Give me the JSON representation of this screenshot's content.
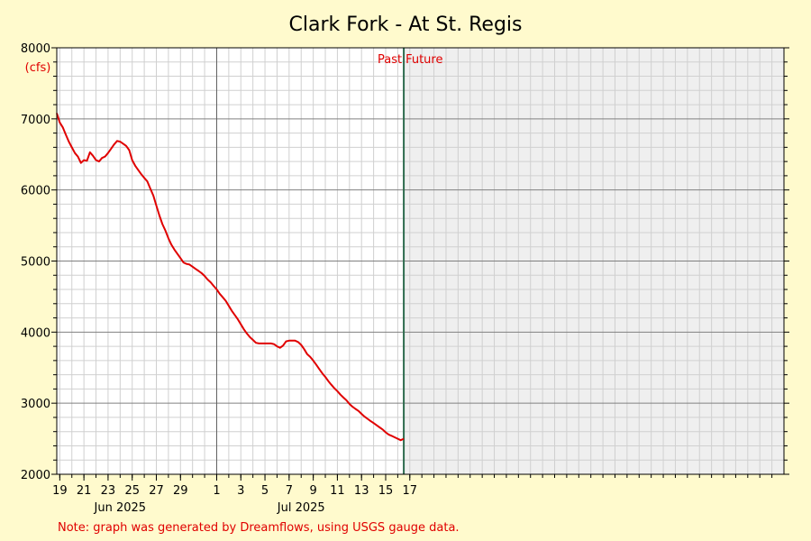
{
  "chart_data": {
    "type": "line",
    "title": "Clark Fork - At St. Regis",
    "ylabel": "(cfs)",
    "ylim": [
      2000,
      8000
    ],
    "y_ticks": [
      "2000",
      "3000",
      "4000",
      "5000",
      "6000",
      "7000",
      "8000"
    ],
    "y_tick_values": [
      2000,
      3000,
      4000,
      5000,
      6000,
      7000,
      8000
    ],
    "x_range": [
      "2025-05-18T18:00",
      "2025-07-18T00:00"
    ],
    "x_tick_labels": [
      "19",
      "21",
      "23",
      "25",
      "27",
      "29",
      "1",
      "3",
      "5",
      "7",
      "9",
      "11",
      "13",
      "15",
      "17"
    ],
    "x_tick_dates": [
      "2025-05-19",
      "2025-05-21",
      "2025-05-23",
      "2025-05-25",
      "2025-05-27",
      "2025-05-29",
      "2025-06-01",
      "2025-06-03",
      "2025-06-05",
      "2025-06-07",
      "2025-06-09",
      "2025-06-11",
      "2025-06-13",
      "2025-06-15",
      "2025-06-17"
    ],
    "month_labels": [
      {
        "text": "Jun 2025",
        "date": "2025-05-24"
      },
      {
        "text": "Jul 2025",
        "date": "2025-06-08"
      }
    ],
    "month_boundary": "2025-06-01",
    "now_date": "2025-06-16T12:00",
    "past_label": "Past",
    "future_label": "Future",
    "grid": true,
    "series": [
      {
        "color": "#e00000",
        "points": [
          [
            "2025-05-18T18:00",
            7080
          ],
          [
            "2025-05-19T00:00",
            6950
          ],
          [
            "2025-05-19T06:00",
            6880
          ],
          [
            "2025-05-19T12:00",
            6780
          ],
          [
            "2025-05-19T18:00",
            6680
          ],
          [
            "2025-05-20T00:00",
            6600
          ],
          [
            "2025-05-20T06:00",
            6520
          ],
          [
            "2025-05-20T12:00",
            6470
          ],
          [
            "2025-05-20T18:00",
            6380
          ],
          [
            "2025-05-21T00:00",
            6420
          ],
          [
            "2025-05-21T06:00",
            6410
          ],
          [
            "2025-05-21T12:00",
            6530
          ],
          [
            "2025-05-21T18:00",
            6480
          ],
          [
            "2025-05-22T00:00",
            6420
          ],
          [
            "2025-05-22T06:00",
            6400
          ],
          [
            "2025-05-22T12:00",
            6450
          ],
          [
            "2025-05-22T18:00",
            6470
          ],
          [
            "2025-05-23T00:00",
            6520
          ],
          [
            "2025-05-23T06:00",
            6580
          ],
          [
            "2025-05-23T12:00",
            6640
          ],
          [
            "2025-05-23T18:00",
            6690
          ],
          [
            "2025-05-24T00:00",
            6680
          ],
          [
            "2025-05-24T06:00",
            6650
          ],
          [
            "2025-05-24T12:00",
            6620
          ],
          [
            "2025-05-24T18:00",
            6560
          ],
          [
            "2025-05-25T00:00",
            6420
          ],
          [
            "2025-05-25T06:00",
            6340
          ],
          [
            "2025-05-25T12:00",
            6280
          ],
          [
            "2025-05-25T18:00",
            6220
          ],
          [
            "2025-05-26T00:00",
            6170
          ],
          [
            "2025-05-26T06:00",
            6120
          ],
          [
            "2025-05-26T12:00",
            6020
          ],
          [
            "2025-05-26T18:00",
            5920
          ],
          [
            "2025-05-27T00:00",
            5780
          ],
          [
            "2025-05-27T06:00",
            5640
          ],
          [
            "2025-05-27T12:00",
            5520
          ],
          [
            "2025-05-27T18:00",
            5430
          ],
          [
            "2025-05-28T00:00",
            5320
          ],
          [
            "2025-05-28T06:00",
            5230
          ],
          [
            "2025-05-28T12:00",
            5160
          ],
          [
            "2025-05-28T18:00",
            5100
          ],
          [
            "2025-05-29T00:00",
            5040
          ],
          [
            "2025-05-29T06:00",
            4980
          ],
          [
            "2025-05-29T12:00",
            4960
          ],
          [
            "2025-05-29T18:00",
            4950
          ],
          [
            "2025-05-30T00:00",
            4920
          ],
          [
            "2025-05-30T06:00",
            4890
          ],
          [
            "2025-05-30T12:00",
            4860
          ],
          [
            "2025-05-30T18:00",
            4830
          ],
          [
            "2025-05-31T00:00",
            4790
          ],
          [
            "2025-05-31T06:00",
            4740
          ],
          [
            "2025-05-31T12:00",
            4700
          ],
          [
            "2025-05-31T18:00",
            4650
          ],
          [
            "2025-06-01T00:00",
            4600
          ],
          [
            "2025-06-01T06:00",
            4540
          ],
          [
            "2025-06-01T12:00",
            4490
          ],
          [
            "2025-06-01T18:00",
            4440
          ],
          [
            "2025-06-02T00:00",
            4370
          ],
          [
            "2025-06-02T06:00",
            4300
          ],
          [
            "2025-06-02T12:00",
            4240
          ],
          [
            "2025-06-02T18:00",
            4180
          ],
          [
            "2025-06-03T00:00",
            4110
          ],
          [
            "2025-06-03T06:00",
            4040
          ],
          [
            "2025-06-03T12:00",
            3980
          ],
          [
            "2025-06-03T18:00",
            3930
          ],
          [
            "2025-06-04T00:00",
            3890
          ],
          [
            "2025-06-04T06:00",
            3850
          ],
          [
            "2025-06-04T12:00",
            3840
          ],
          [
            "2025-06-04T18:00",
            3840
          ],
          [
            "2025-06-05T00:00",
            3840
          ],
          [
            "2025-06-05T06:00",
            3840
          ],
          [
            "2025-06-05T12:00",
            3840
          ],
          [
            "2025-06-05T18:00",
            3830
          ],
          [
            "2025-06-06T00:00",
            3800
          ],
          [
            "2025-06-06T06:00",
            3780
          ],
          [
            "2025-06-06T12:00",
            3810
          ],
          [
            "2025-06-06T18:00",
            3870
          ],
          [
            "2025-06-07T00:00",
            3880
          ],
          [
            "2025-06-07T06:00",
            3880
          ],
          [
            "2025-06-07T12:00",
            3880
          ],
          [
            "2025-06-07T18:00",
            3860
          ],
          [
            "2025-06-08T00:00",
            3820
          ],
          [
            "2025-06-08T06:00",
            3760
          ],
          [
            "2025-06-08T12:00",
            3690
          ],
          [
            "2025-06-08T18:00",
            3650
          ],
          [
            "2025-06-09T00:00",
            3600
          ],
          [
            "2025-06-09T06:00",
            3540
          ],
          [
            "2025-06-09T12:00",
            3480
          ],
          [
            "2025-06-09T18:00",
            3420
          ],
          [
            "2025-06-10T00:00",
            3370
          ],
          [
            "2025-06-10T06:00",
            3310
          ],
          [
            "2025-06-10T12:00",
            3260
          ],
          [
            "2025-06-10T18:00",
            3210
          ],
          [
            "2025-06-11T00:00",
            3170
          ],
          [
            "2025-06-11T06:00",
            3120
          ],
          [
            "2025-06-11T12:00",
            3080
          ],
          [
            "2025-06-11T18:00",
            3040
          ],
          [
            "2025-06-12T00:00",
            2990
          ],
          [
            "2025-06-12T06:00",
            2950
          ],
          [
            "2025-06-12T12:00",
            2920
          ],
          [
            "2025-06-12T18:00",
            2890
          ],
          [
            "2025-06-13T00:00",
            2850
          ],
          [
            "2025-06-13T06:00",
            2810
          ],
          [
            "2025-06-13T12:00",
            2780
          ],
          [
            "2025-06-13T18:00",
            2750
          ],
          [
            "2025-06-14T00:00",
            2720
          ],
          [
            "2025-06-14T06:00",
            2690
          ],
          [
            "2025-06-14T12:00",
            2660
          ],
          [
            "2025-06-14T18:00",
            2630
          ],
          [
            "2025-06-15T00:00",
            2590
          ],
          [
            "2025-06-15T06:00",
            2560
          ],
          [
            "2025-06-15T12:00",
            2540
          ],
          [
            "2025-06-15T18:00",
            2520
          ],
          [
            "2025-06-16T00:00",
            2500
          ],
          [
            "2025-06-16T06:00",
            2480
          ],
          [
            "2025-06-16T12:00",
            2500
          ]
        ]
      }
    ]
  },
  "footer": {
    "note": "Note: graph was generated by Dreamflows, using USGS gauge data."
  }
}
